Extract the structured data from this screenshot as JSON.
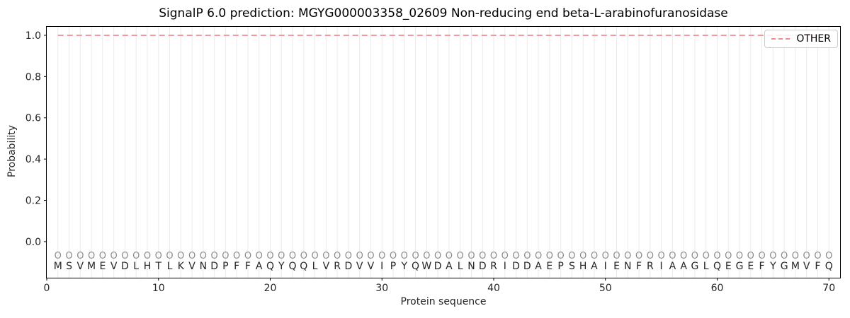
{
  "title": "SignalP 6.0 prediction: MGYG000003358_02609 Non-reducing end beta-L-arabinofuranosidase",
  "axes": {
    "xlabel": "Protein sequence",
    "ylabel": "Probability",
    "x_tick_labels": [
      "0",
      "10",
      "20",
      "30",
      "40",
      "50",
      "60",
      "70"
    ],
    "x_tick_values": [
      0,
      10,
      20,
      30,
      40,
      50,
      60,
      70
    ],
    "y_tick_labels": [
      "0.0",
      "0.2",
      "0.4",
      "0.6",
      "0.8",
      "1.0"
    ],
    "y_tick_values": [
      0.0,
      0.2,
      0.4,
      0.6,
      0.8,
      1.0
    ]
  },
  "legend": {
    "position": "upper right",
    "entries": [
      {
        "label": "OTHER",
        "color": "#f08c8c",
        "line_style": "dashed"
      }
    ]
  },
  "colors": {
    "other_line": "#f08c8c",
    "gridline": "#ebebeb",
    "marker_letter": "#8c8c8c",
    "residue_letter": "#262626",
    "spine": "#000000",
    "tick_label": "#262626",
    "background": "#ffffff"
  },
  "chart_data": {
    "type": "line",
    "title": "SignalP 6.0 prediction: MGYG000003358_02609 Non-reducing end beta-L-arabinofuranosidase",
    "xlabel": "Protein sequence",
    "ylabel": "Probability",
    "xlim": [
      0,
      71
    ],
    "ylim": [
      -0.175,
      1.041
    ],
    "grid": "vertical-per-residue",
    "legend_position": "upper right",
    "sequence": "MSVMEVDLHTLKVNDPFFAQYQQLVRDVVIPYQWDALNDRIDDAEPSHAIENFRIAAGLQEGEFYGMVFQ",
    "per_position_marker_label": "O",
    "series": [
      {
        "name": "OTHER",
        "x": [
          1,
          2,
          3,
          4,
          5,
          6,
          7,
          8,
          9,
          10,
          11,
          12,
          13,
          14,
          15,
          16,
          17,
          18,
          19,
          20,
          21,
          22,
          23,
          24,
          25,
          26,
          27,
          28,
          29,
          30,
          31,
          32,
          33,
          34,
          35,
          36,
          37,
          38,
          39,
          40,
          41,
          42,
          43,
          44,
          45,
          46,
          47,
          48,
          49,
          50,
          51,
          52,
          53,
          54,
          55,
          56,
          57,
          58,
          59,
          60,
          61,
          62,
          63,
          64,
          65,
          66,
          67,
          68,
          69,
          70
        ],
        "y": [
          1.0,
          1.0,
          1.0,
          1.0,
          1.0,
          1.0,
          1.0,
          1.0,
          1.0,
          1.0,
          1.0,
          1.0,
          1.0,
          1.0,
          1.0,
          1.0,
          1.0,
          1.0,
          1.0,
          1.0,
          1.0,
          1.0,
          1.0,
          1.0,
          1.0,
          1.0,
          1.0,
          1.0,
          1.0,
          1.0,
          1.0,
          1.0,
          1.0,
          1.0,
          1.0,
          1.0,
          1.0,
          1.0,
          1.0,
          1.0,
          1.0,
          1.0,
          1.0,
          1.0,
          1.0,
          1.0,
          1.0,
          1.0,
          1.0,
          1.0,
          1.0,
          1.0,
          1.0,
          1.0,
          1.0,
          1.0,
          1.0,
          1.0,
          1.0,
          1.0,
          1.0,
          1.0,
          1.0,
          1.0,
          1.0,
          1.0,
          1.0,
          1.0,
          1.0,
          1.0
        ]
      }
    ]
  }
}
